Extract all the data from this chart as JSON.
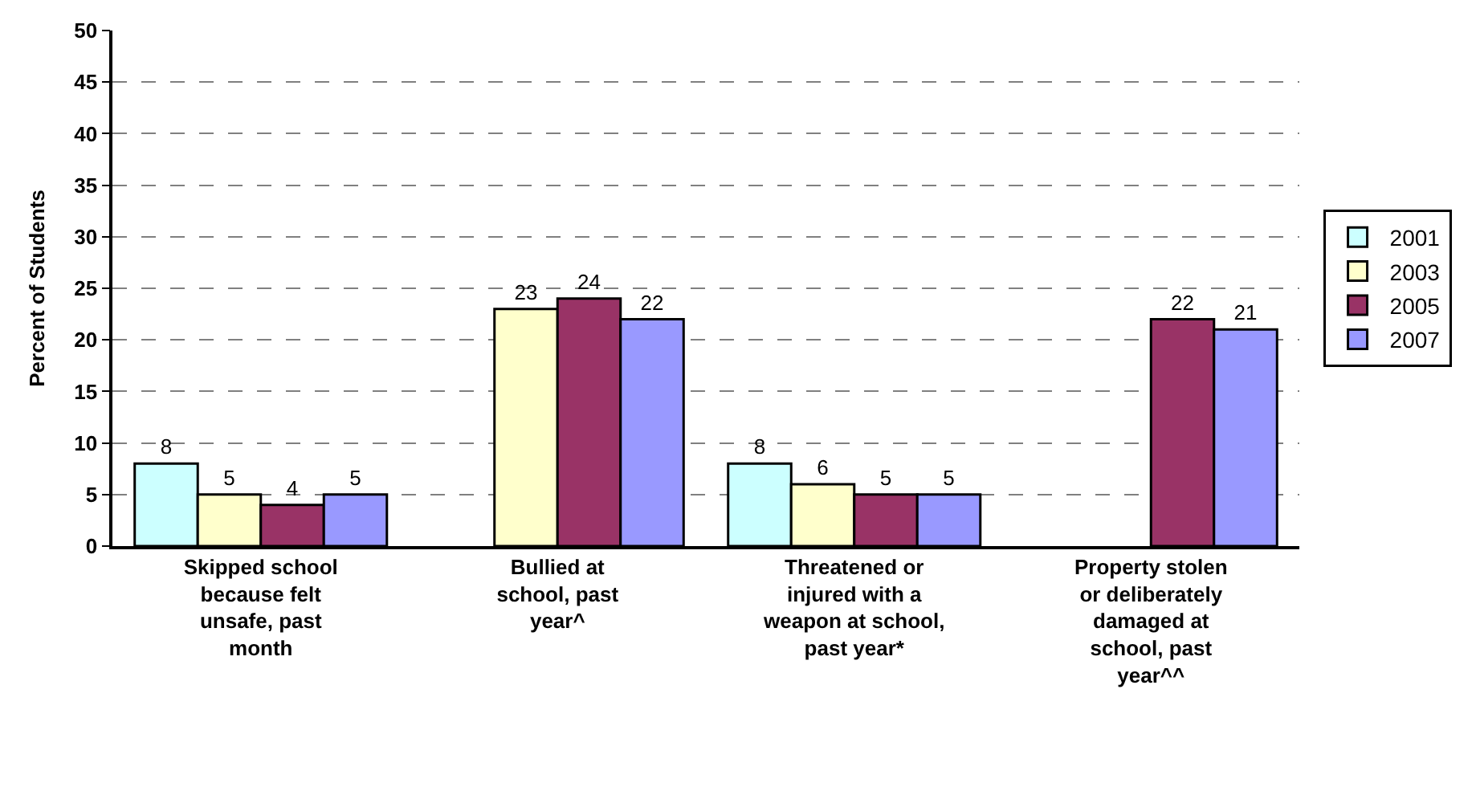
{
  "chart_data": {
    "type": "bar",
    "ylabel": "Percent of Students",
    "categories": [
      "Skipped school because felt unsafe, past month",
      "Bullied at school, past year^",
      "Threatened or injured with a weapon at school, past year*",
      "Property stolen or deliberately damaged at school, past year^^"
    ],
    "series": [
      {
        "name": "2001",
        "color": "#ccffff",
        "values": [
          8,
          null,
          8,
          null
        ]
      },
      {
        "name": "2003",
        "color": "#ffffcc",
        "values": [
          5,
          23,
          6,
          null
        ]
      },
      {
        "name": "2005",
        "color": "#993366",
        "values": [
          4,
          24,
          5,
          22
        ]
      },
      {
        "name": "2007",
        "color": "#9999ff",
        "values": [
          5,
          22,
          5,
          21
        ]
      }
    ],
    "ylim": [
      0,
      50
    ],
    "yticks": [
      0,
      5,
      10,
      15,
      20,
      25,
      30,
      35,
      40,
      45,
      50
    ],
    "grid": "y",
    "legend": "right",
    "data_labels": true
  }
}
